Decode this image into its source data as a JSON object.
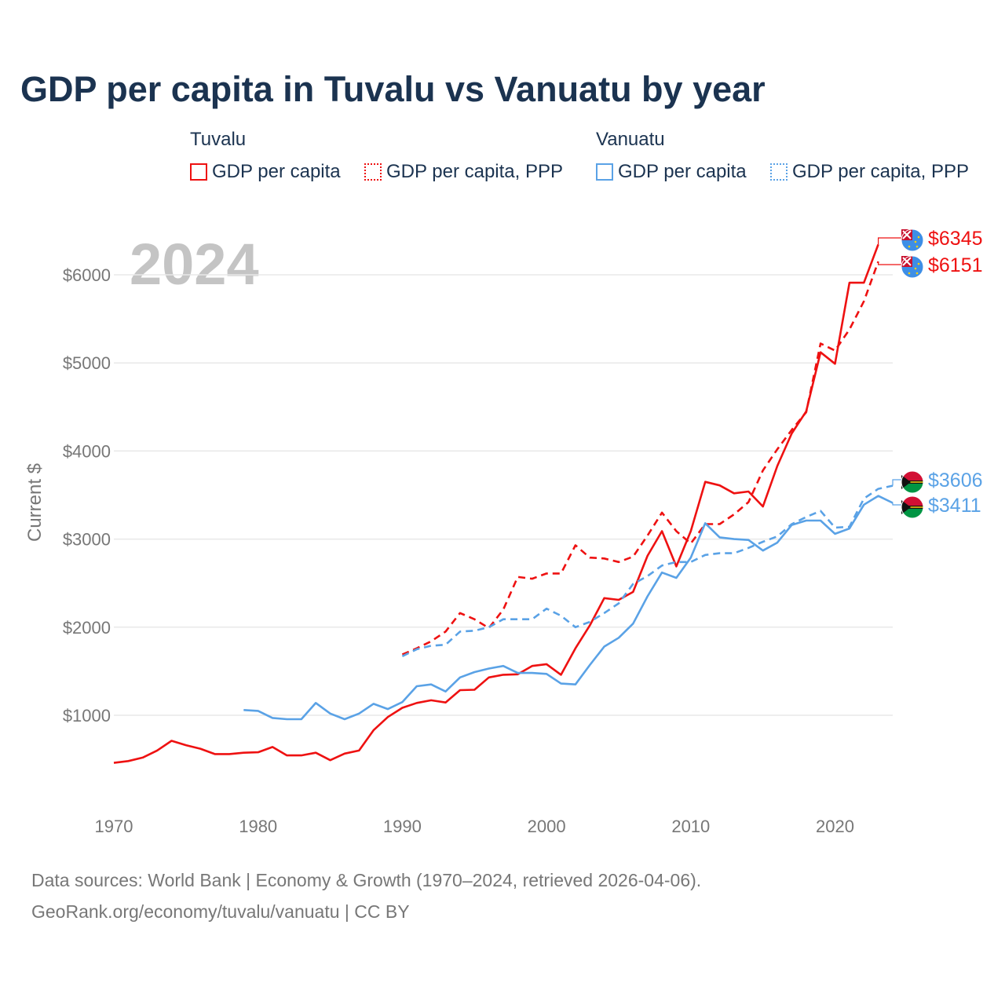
{
  "colors": {
    "tuvalu": "#ee1111",
    "vanuatu": "#5aa2e6",
    "title": "#1b3350",
    "axis_text": "#777777",
    "grid": "#e8e8e8",
    "year_watermark": "#c4c4c4"
  },
  "chart_data": {
    "type": "line",
    "title": "GDP per capita in Tuvalu vs Vanuatu by year",
    "xlabel": "",
    "ylabel": "Current $",
    "xlim": [
      1970,
      2024
    ],
    "ylim": [
      0,
      6400
    ],
    "x_ticks": [
      1970,
      1980,
      1990,
      2000,
      2010,
      2020
    ],
    "x_tick_labels": [
      "1970",
      "1980",
      "1990",
      "2000",
      "2010",
      "2020"
    ],
    "y_ticks": [
      1000,
      2000,
      3000,
      4000,
      5000,
      6000
    ],
    "y_tick_labels": [
      "$1000",
      "$2000",
      "$3000",
      "$4000",
      "$5000",
      "$6000"
    ],
    "year_label": "2024",
    "legend": {
      "groups": [
        {
          "name": "Tuvalu",
          "items": [
            "GDP per capita",
            "GDP per capita, PPP"
          ]
        },
        {
          "name": "Vanuatu",
          "items": [
            "GDP per capita",
            "GDP per capita, PPP"
          ]
        }
      ]
    },
    "series": [
      {
        "name": "Tuvalu GDP per capita",
        "country": "tuvalu",
        "style": "solid",
        "x": [
          1970,
          1971,
          1972,
          1973,
          1974,
          1975,
          1976,
          1977,
          1978,
          1979,
          1980,
          1981,
          1982,
          1983,
          1984,
          1985,
          1986,
          1987,
          1988,
          1989,
          1990,
          1991,
          1992,
          1993,
          1994,
          1995,
          1996,
          1997,
          1998,
          1999,
          2000,
          2001,
          2002,
          2003,
          2004,
          2005,
          2006,
          2007,
          2008,
          2009,
          2010,
          2011,
          2012,
          2013,
          2014,
          2015,
          2016,
          2017,
          2018,
          2019,
          2020,
          2021,
          2022,
          2023
        ],
        "values": [
          460,
          480,
          520,
          600,
          710,
          660,
          620,
          560,
          560,
          575,
          580,
          640,
          545,
          545,
          575,
          490,
          565,
          600,
          830,
          980,
          1085,
          1140,
          1170,
          1145,
          1285,
          1290,
          1430,
          1460,
          1465,
          1560,
          1580,
          1460,
          1760,
          2020,
          2330,
          2310,
          2400,
          2810,
          3090,
          2690,
          3090,
          3650,
          3610,
          3520,
          3540,
          3370,
          3830,
          4200,
          4450,
          5120,
          4990,
          5910,
          5910,
          6345
        ],
        "end_label": "$6345"
      },
      {
        "name": "Tuvalu GDP per capita, PPP",
        "country": "tuvalu",
        "style": "dashed",
        "x": [
          1990,
          1991,
          1992,
          1993,
          1994,
          1995,
          1996,
          1997,
          1998,
          1999,
          2000,
          2001,
          2002,
          2003,
          2004,
          2005,
          2006,
          2007,
          2008,
          2009,
          2010,
          2011,
          2012,
          2013,
          2014,
          2015,
          2016,
          2017,
          2018,
          2019,
          2020,
          2021,
          2022,
          2023
        ],
        "values": [
          1690,
          1760,
          1840,
          1950,
          2160,
          2090,
          1990,
          2200,
          2570,
          2550,
          2610,
          2610,
          2930,
          2790,
          2780,
          2740,
          2800,
          3040,
          3300,
          3090,
          2950,
          3170,
          3170,
          3280,
          3420,
          3780,
          4020,
          4240,
          4440,
          5220,
          5140,
          5380,
          5700,
          6151
        ],
        "end_label": "$6151"
      },
      {
        "name": "Vanuatu GDP per capita",
        "country": "vanuatu",
        "style": "solid",
        "x": [
          1979,
          1980,
          1981,
          1982,
          1983,
          1984,
          1985,
          1986,
          1987,
          1988,
          1989,
          1990,
          1991,
          1992,
          1993,
          1994,
          1995,
          1996,
          1997,
          1998,
          1999,
          2000,
          2001,
          2002,
          2003,
          2004,
          2005,
          2006,
          2007,
          2008,
          2009,
          2010,
          2011,
          2012,
          2013,
          2014,
          2015,
          2016,
          2017,
          2018,
          2019,
          2020,
          2021,
          2022,
          2023,
          2024
        ],
        "values": [
          1060,
          1050,
          970,
          955,
          955,
          1140,
          1020,
          955,
          1020,
          1130,
          1070,
          1150,
          1330,
          1350,
          1270,
          1430,
          1490,
          1530,
          1560,
          1480,
          1480,
          1470,
          1360,
          1350,
          1570,
          1780,
          1880,
          2040,
          2350,
          2620,
          2560,
          2790,
          3180,
          3020,
          3000,
          2990,
          2870,
          2960,
          3160,
          3210,
          3210,
          3060,
          3120,
          3390,
          3490,
          3411
        ],
        "end_label": "$3411"
      },
      {
        "name": "Vanuatu GDP per capita, PPP",
        "country": "vanuatu",
        "style": "dashed",
        "x": [
          1990,
          1991,
          1992,
          1993,
          1994,
          1995,
          1996,
          1997,
          1998,
          1999,
          2000,
          2001,
          2002,
          2003,
          2004,
          2005,
          2006,
          2007,
          2008,
          2009,
          2010,
          2011,
          2012,
          2013,
          2014,
          2015,
          2016,
          2017,
          2018,
          2019,
          2020,
          2021,
          2022,
          2023,
          2024
        ],
        "values": [
          1670,
          1750,
          1790,
          1800,
          1950,
          1960,
          2000,
          2090,
          2090,
          2090,
          2210,
          2130,
          2000,
          2060,
          2160,
          2270,
          2490,
          2580,
          2700,
          2740,
          2740,
          2820,
          2840,
          2840,
          2900,
          2970,
          3030,
          3170,
          3250,
          3320,
          3130,
          3140,
          3460,
          3570,
          3606
        ],
        "end_label": "$3606"
      }
    ]
  },
  "footer": {
    "sources": "Data sources: World Bank | Economy & Growth (1970–2024, retrieved 2026-04-06).",
    "credit": "GeoRank.org/economy/tuvalu/vanuatu | CC BY"
  }
}
